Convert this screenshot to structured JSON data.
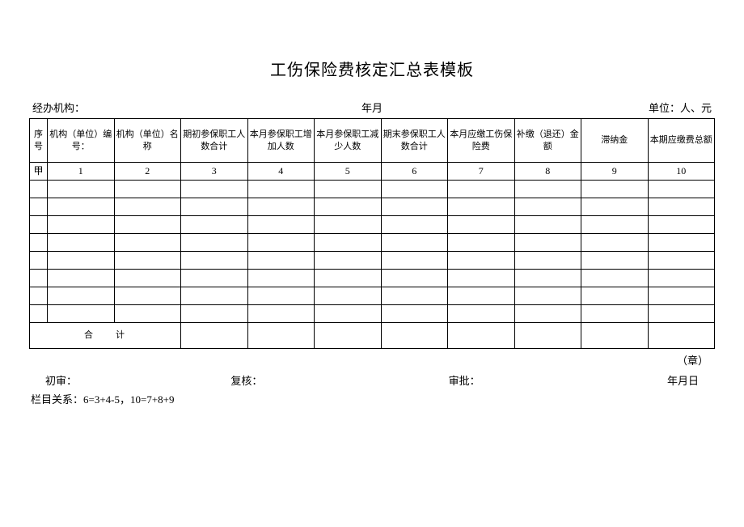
{
  "title": "工伤保险费核定汇总表模板",
  "meta": {
    "agency_label": "经办机构：",
    "period_label": "年月",
    "unit_label": "单位：人、元"
  },
  "table": {
    "columns": [
      "序号",
      "机构（单位）编号：",
      "机构（单位）名称",
      "期初参保职工人数合计",
      "本月参保职工增加人数",
      "本月参保职工减少人数",
      "期末参保职工人数合计",
      "本月应缴工伤保险费",
      "补缴（退还）金额",
      "滞纳金",
      "本期应缴费总额"
    ],
    "num_row": [
      "甲",
      "1",
      "2",
      "3",
      "4",
      "5",
      "6",
      "7",
      "8",
      "9",
      "10"
    ],
    "empty_row_count": 8,
    "total_label": "合计"
  },
  "stamp": "（章）",
  "signatures": {
    "s1": "初审：",
    "s2": "复核：",
    "s3": "审批：",
    "s4": "年月日"
  },
  "formula": "栏目关系：6=3+4-5，10=7+8+9",
  "style": {
    "border_color": "#000000",
    "background_color": "#ffffff",
    "text_color": "#000000",
    "title_fontsize": 20,
    "body_fontsize": 13,
    "cell_fontsize": 11
  }
}
